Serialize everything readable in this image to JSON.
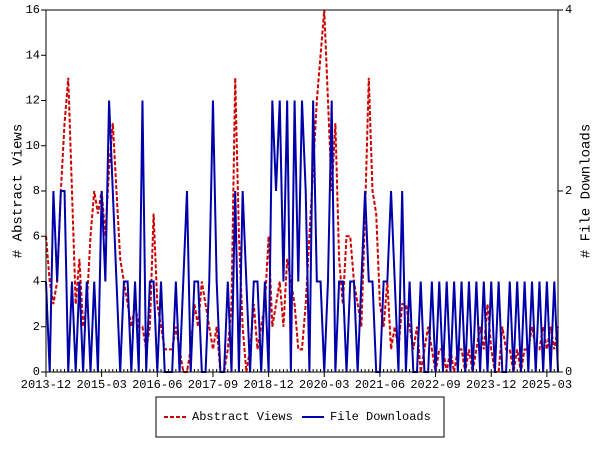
{
  "chart_data": {
    "type": "line",
    "ylabel": "# Abstract Views",
    "y2label": "# File Downloads",
    "x": [
      "2013-12",
      "2014-01",
      "2014-02",
      "2014-03",
      "2014-04",
      "2014-05",
      "2014-06",
      "2014-07",
      "2014-08",
      "2014-09",
      "2014-10",
      "2014-11",
      "2014-12",
      "2015-01",
      "2015-02",
      "2015-03",
      "2015-04",
      "2015-05",
      "2015-06",
      "2015-07",
      "2015-08",
      "2015-09",
      "2015-10",
      "2015-11",
      "2015-12",
      "2016-01",
      "2016-02",
      "2016-03",
      "2016-04",
      "2016-05",
      "2016-06",
      "2016-07",
      "2016-08",
      "2016-09",
      "2016-10",
      "2016-11",
      "2016-12",
      "2017-01",
      "2017-02",
      "2017-03",
      "2017-04",
      "2017-05",
      "2017-06",
      "2017-07",
      "2017-08",
      "2017-09",
      "2017-10",
      "2017-11",
      "2017-12",
      "2018-01",
      "2018-02",
      "2018-03",
      "2018-04",
      "2018-05",
      "2018-06",
      "2018-07",
      "2018-08",
      "2018-09",
      "2018-10",
      "2018-11",
      "2018-12",
      "2019-01",
      "2019-02",
      "2019-03",
      "2019-04",
      "2019-05",
      "2019-06",
      "2019-07",
      "2019-08",
      "2019-09",
      "2019-10",
      "2019-11",
      "2019-12",
      "2020-01",
      "2020-02",
      "2020-03",
      "2020-04",
      "2020-05",
      "2020-06",
      "2020-07",
      "2020-08",
      "2020-09",
      "2020-10",
      "2020-11",
      "2020-12",
      "2021-01",
      "2021-02",
      "2021-03",
      "2021-04",
      "2021-05",
      "2021-06",
      "2021-07",
      "2021-08",
      "2021-09",
      "2021-10",
      "2021-11",
      "2021-12",
      "2022-01",
      "2022-02",
      "2022-03",
      "2022-04",
      "2022-05",
      "2022-06",
      "2022-07",
      "2022-08",
      "2022-09",
      "2022-10",
      "2022-11",
      "2022-12",
      "2023-01",
      "2023-02",
      "2023-03",
      "2023-04",
      "2023-05",
      "2023-06",
      "2023-07",
      "2023-08",
      "2023-09",
      "2023-10",
      "2023-11",
      "2023-12",
      "2024-01",
      "2024-02",
      "2024-03",
      "2024-04",
      "2024-05",
      "2024-06",
      "2024-07",
      "2024-08",
      "2024-09",
      "2024-10",
      "2024-11",
      "2024-12",
      "2025-01",
      "2025-02",
      "2025-03",
      "2025-04",
      "2025-05",
      "2025-06"
    ],
    "xticks": [
      "2013-12",
      "2015-03",
      "2016-06",
      "2017-09",
      "2018-12",
      "2020-03",
      "2021-06",
      "2022-09",
      "2023-12",
      "2025-03"
    ],
    "ylim": [
      0,
      16
    ],
    "yticks": [
      0,
      2,
      4,
      6,
      8,
      10,
      12,
      14,
      16
    ],
    "y2lim": [
      0,
      4
    ],
    "y2ticks": [
      0,
      2,
      4
    ],
    "series": [
      {
        "name": "Abstract Views",
        "color": "#cc0000",
        "dash": true,
        "values": [
          6,
          4,
          3,
          4,
          8,
          11,
          13,
          8,
          3,
          5,
          2,
          3,
          6,
          8,
          7,
          8,
          6,
          9,
          11,
          8,
          5,
          4,
          3,
          2,
          3,
          2,
          2,
          1,
          2,
          7,
          3,
          2,
          1,
          1,
          1,
          2,
          1,
          0,
          0,
          1,
          3,
          2,
          4,
          3,
          2,
          1,
          2,
          0,
          0,
          1,
          3,
          13,
          6,
          2,
          0,
          1,
          3,
          1,
          2,
          3,
          6,
          2,
          3,
          4,
          2,
          5,
          4,
          3,
          1,
          1,
          3,
          6,
          9,
          12,
          14,
          16,
          12,
          8,
          11,
          5,
          3,
          6,
          6,
          4,
          3,
          2,
          7,
          13,
          8,
          7,
          3,
          2,
          4,
          1,
          2,
          1,
          3,
          3,
          2,
          1,
          2,
          0,
          1,
          2,
          1,
          0,
          1,
          1,
          0,
          1,
          0,
          1,
          1,
          0,
          1,
          0,
          1,
          2,
          1,
          3,
          1,
          0,
          0,
          2,
          1,
          1,
          0,
          1,
          0,
          1,
          1,
          2,
          1,
          1,
          2,
          1,
          2,
          1,
          2
        ]
      },
      {
        "name": "File Downloads",
        "color": "#0000aa",
        "dash": false,
        "axis": "y2",
        "values": [
          1,
          0,
          2,
          1,
          2,
          2,
          0,
          1,
          0,
          1,
          0,
          1,
          0,
          1,
          0,
          2,
          1,
          3,
          2,
          1,
          0,
          1,
          1,
          0,
          1,
          0,
          3,
          0,
          1,
          1,
          0,
          1,
          0,
          0,
          0,
          1,
          0,
          1,
          2,
          0,
          1,
          1,
          0,
          0,
          1,
          3,
          1,
          0,
          0,
          1,
          0,
          2,
          0,
          2,
          1,
          0,
          1,
          1,
          0,
          1,
          0,
          3,
          2,
          3,
          1,
          3,
          0,
          3,
          1,
          3,
          2,
          0,
          3,
          1,
          1,
          0,
          1,
          3,
          0,
          1,
          1,
          0,
          1,
          1,
          0,
          1,
          2,
          1,
          1,
          0,
          0,
          1,
          1,
          2,
          1,
          0,
          2,
          0,
          1,
          0,
          0,
          1,
          0,
          0,
          1,
          0,
          1,
          0,
          1,
          0,
          1,
          0,
          1,
          0,
          1,
          0,
          1,
          0,
          1,
          0,
          1,
          0,
          1,
          0,
          0,
          1,
          0,
          1,
          0,
          1,
          0,
          1,
          0,
          1,
          0,
          1,
          0,
          1,
          0
        ]
      }
    ]
  }
}
